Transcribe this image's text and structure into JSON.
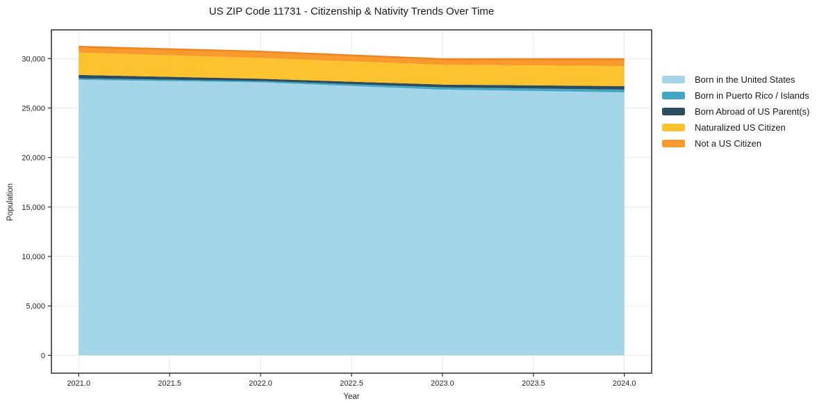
{
  "title": "US ZIP Code 11731 - Citizenship & Nativity Trends Over Time",
  "chart_data": {
    "type": "area",
    "stacked": true,
    "title": "US ZIP Code 11731 - Citizenship & Nativity Trends Over Time",
    "xlabel": "Year",
    "ylabel": "Population",
    "x": [
      2021,
      2022,
      2023,
      2024
    ],
    "xlim": [
      2020.85,
      2024.15
    ],
    "ylim": [
      -1800,
      32900
    ],
    "x_ticks": [
      2021,
      2021.5,
      2022,
      2022.5,
      2023,
      2023.5,
      2024
    ],
    "x_tick_labels": [
      "2021.0",
      "2021.5",
      "2022.0",
      "2022.5",
      "2023.0",
      "2023.5",
      "2024.0"
    ],
    "y_ticks": [
      0,
      5000,
      10000,
      15000,
      20000,
      25000,
      30000
    ],
    "y_tick_labels": [
      "0",
      "5,000",
      "10,000",
      "15,000",
      "20,000",
      "25,000",
      "30,000"
    ],
    "grid": true,
    "legend_position": "right-outside",
    "series": [
      {
        "name": "Born in the United States",
        "color": "#a5d5e8",
        "values": [
          27850,
          27600,
          26860,
          26580
        ]
      },
      {
        "name": "Born in Puerto Rico / Islands",
        "color": "#45a7c6",
        "values": [
          150,
          130,
          230,
          280
        ]
      },
      {
        "name": "Born Abroad of US Parent(s)",
        "color": "#2b4d5e",
        "values": [
          350,
          230,
          280,
          350
        ]
      },
      {
        "name": "Naturalized US Citizen",
        "color": "#fcc32f",
        "values": [
          2250,
          2100,
          2000,
          2040
        ]
      },
      {
        "name": "Not a US Citizen",
        "color": "#f89a2e",
        "values": [
          600,
          650,
          580,
          700
        ]
      }
    ],
    "stack_totals": [
      31200,
      30710,
      29950,
      29950
    ],
    "colors": {
      "top_edge": "#ed8422",
      "grid": "#e9e9e9",
      "spine": "#2b2b2b",
      "text": "#262626",
      "background": "#ffffff"
    }
  }
}
